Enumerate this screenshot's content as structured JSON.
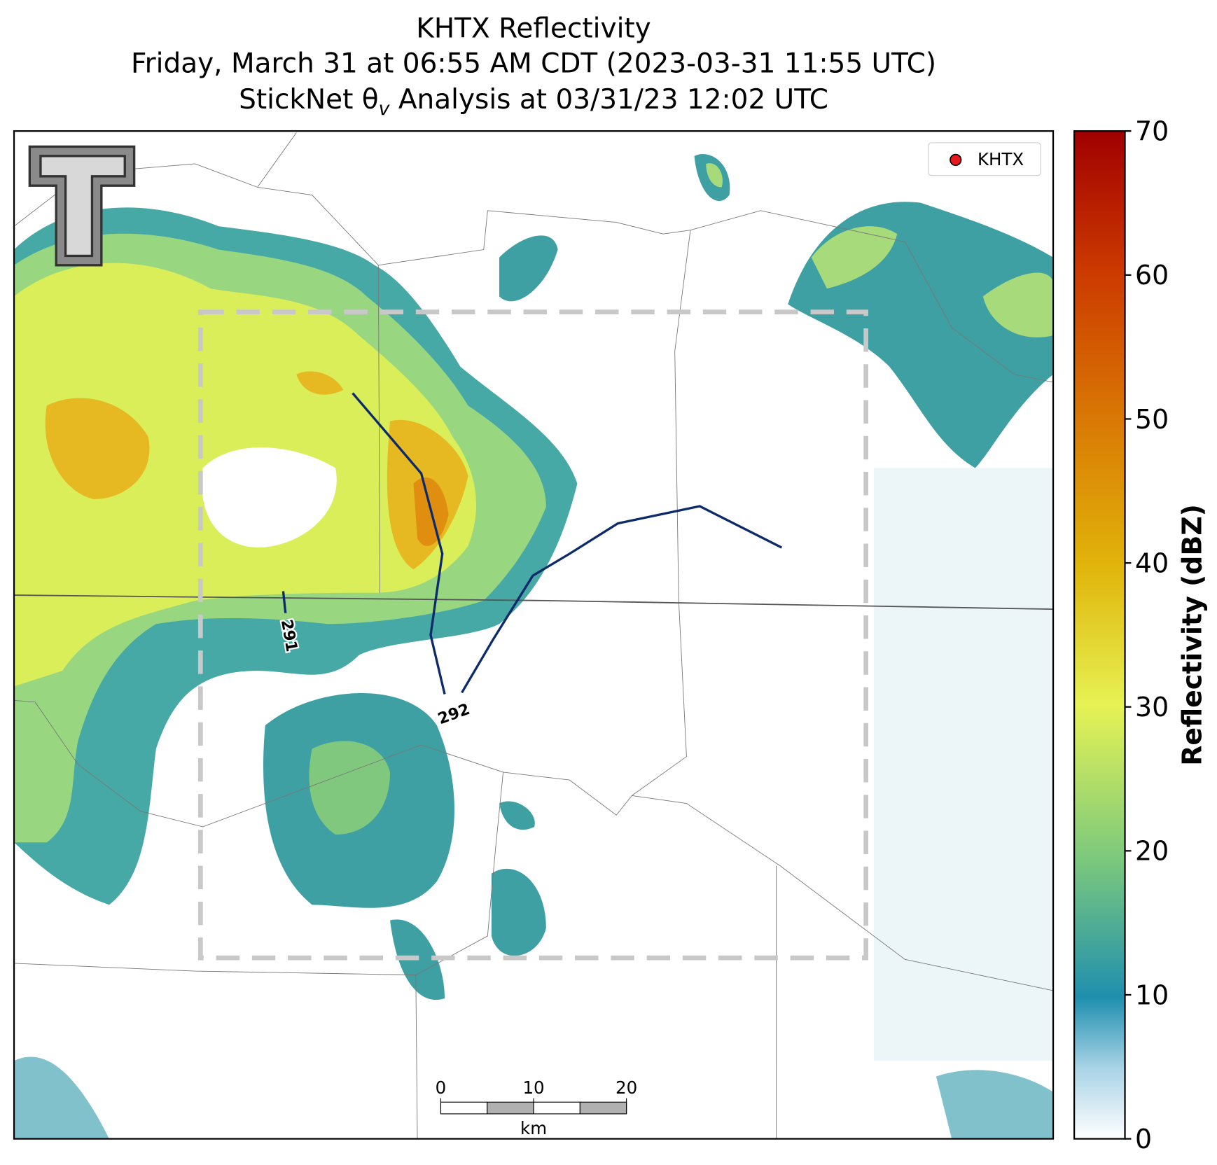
{
  "title": [
    "KHTX Reflectivity",
    "Friday, March 31 at 06:55 AM CDT (2023-03-31 11:55 UTC)"
  ],
  "subtitle": {
    "before": "StickNet θ",
    "sub": "v",
    "after": " Analysis at 03/31/23 12:02 UTC"
  },
  "colorbar": {
    "label": "Reflectivity (dBZ)",
    "lim": [
      0,
      70
    ],
    "ticks": [
      0,
      10,
      20,
      30,
      40,
      50,
      60,
      70
    ]
  },
  "legend": {
    "label": "KHTX",
    "color": "#e41a1c"
  },
  "contours": [
    {
      "label": 291
    },
    {
      "label": 292
    }
  ],
  "scale_bar": {
    "ticks": [
      0,
      10,
      20
    ],
    "unit": "km"
  }
}
